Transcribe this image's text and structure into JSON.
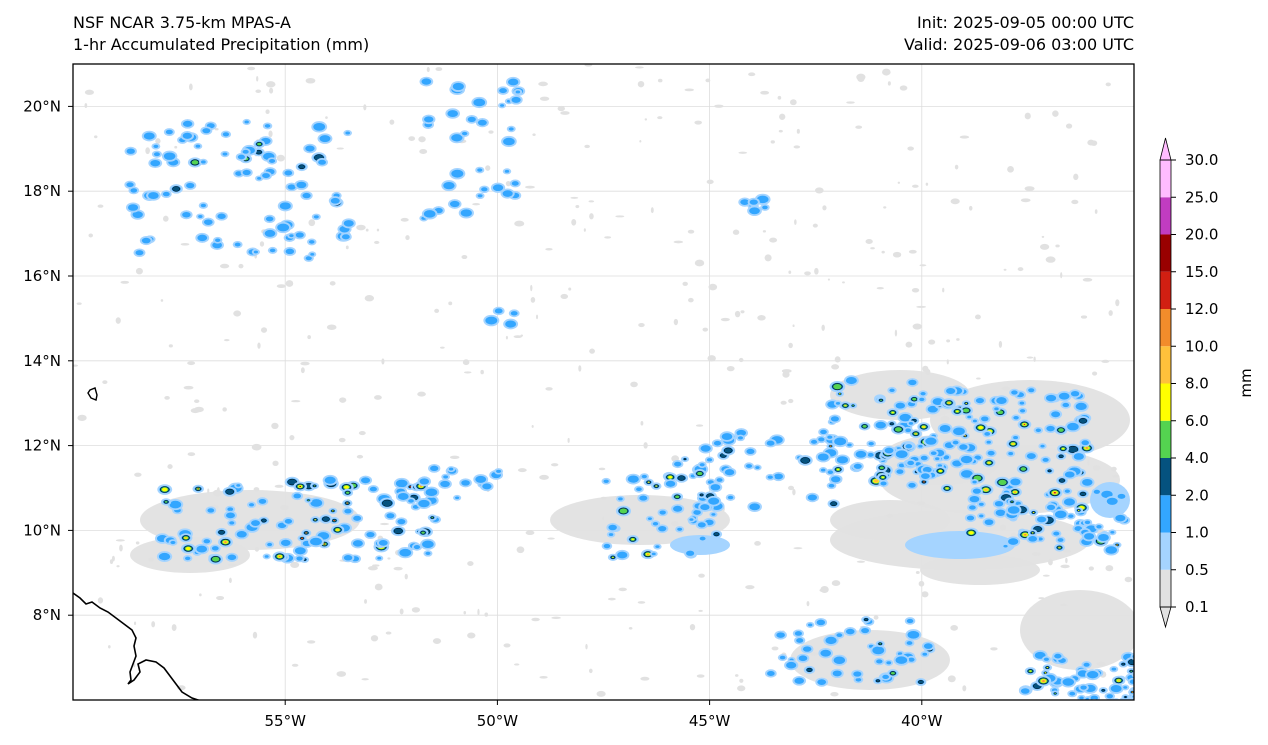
{
  "header": {
    "title_line1": "NSF NCAR 3.75-km MPAS-A",
    "title_line2": "1-hr Accumulated Precipitation (mm)",
    "init": "Init: 2025-09-05 00:00 UTC",
    "valid": "Valid: 2025-09-06 03:00 UTC"
  },
  "map": {
    "lon_range": [
      -60,
      -35
    ],
    "lat_range": [
      6,
      21
    ],
    "lat_ticks": [
      {
        "value": 20,
        "label": "20°N"
      },
      {
        "value": 18,
        "label": "18°N"
      },
      {
        "value": 16,
        "label": "16°N"
      },
      {
        "value": 14,
        "label": "14°N"
      },
      {
        "value": 12,
        "label": "12°N"
      },
      {
        "value": 10,
        "label": "10°N"
      },
      {
        "value": 8,
        "label": "8°N"
      }
    ],
    "lon_ticks": [
      {
        "value": -55,
        "label": "55°W"
      },
      {
        "value": -50,
        "label": "50°W"
      },
      {
        "value": -45,
        "label": "45°W"
      },
      {
        "value": -40,
        "label": "40°W"
      }
    ],
    "gridlines": true,
    "coastline_color": "#000000"
  },
  "colorbar": {
    "unit": "mm",
    "extend": "both",
    "levels": [
      "0.1",
      "0.5",
      "1.0",
      "2.0",
      "4.0",
      "6.0",
      "8.0",
      "10.0",
      "12.0",
      "15.0",
      "20.0",
      "25.0",
      "30.0"
    ],
    "colors": [
      "#e1e1e1",
      "#a5d4ff",
      "#33a6ff",
      "#05527f",
      "#54d350",
      "#ffff00",
      "#ffc13b",
      "#f28c2b",
      "#d11f12",
      "#990000",
      "#c13cc1",
      "#ffbcff"
    ]
  }
}
